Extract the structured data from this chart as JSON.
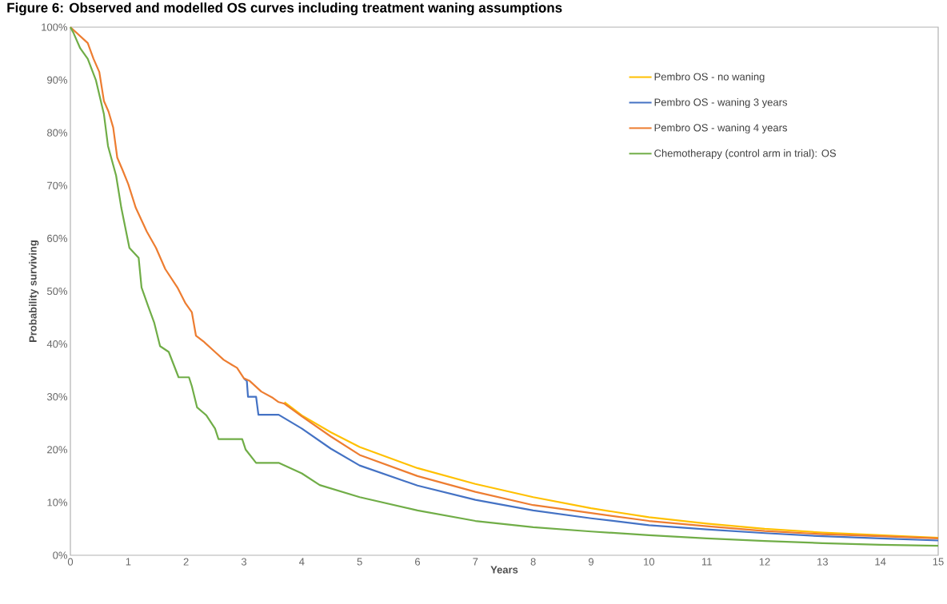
{
  "chart_data": {
    "type": "line",
    "title": "Figure 6: Observed and modelled OS curves including treatment waning assumptions",
    "xlabel": "Years",
    "ylabel": "Probability surviving",
    "xlim": [
      0,
      15
    ],
    "xticks": [
      0,
      1,
      2,
      3,
      4,
      5,
      6,
      7,
      8,
      9,
      10,
      11,
      12,
      13,
      14,
      15
    ],
    "ylim": [
      0,
      100
    ],
    "yticks": [
      {
        "value": 0,
        "label": "0%"
      },
      {
        "value": 10,
        "label": "10%"
      },
      {
        "value": 20,
        "label": "20%"
      },
      {
        "value": 30,
        "label": "30%"
      },
      {
        "value": 40,
        "label": "40%"
      },
      {
        "value": 50,
        "label": "50%"
      },
      {
        "value": 60,
        "label": "60%"
      },
      {
        "value": 70,
        "label": "70%"
      },
      {
        "value": 80,
        "label": "80%"
      },
      {
        "value": 90,
        "label": "90%"
      },
      {
        "value": 100,
        "label": "100%"
      }
    ],
    "grid": false,
    "legend": "top right",
    "line_style": "solid",
    "series": [
      {
        "name": "Pembro OS - no waning",
        "color": "#ffc000",
        "x": [
          3.7,
          4,
          4.5,
          5,
          6,
          7,
          8,
          9,
          10,
          11,
          12,
          13,
          14,
          15
        ],
        "values": [
          29,
          26.5,
          23.3,
          20.5,
          16.5,
          13.5,
          11,
          8.9,
          7.2,
          6,
          5,
          4.3,
          3.8,
          3.3
        ]
      },
      {
        "name": "Pembro OS - waning 3 years",
        "color": "#4472c4",
        "x": [
          3.0,
          3.05,
          3.07,
          3.21,
          3.25,
          3.6,
          4,
          4.5,
          5,
          6,
          7,
          8,
          9,
          10,
          11,
          12,
          13,
          14,
          15
        ],
        "values": [
          33.5,
          33,
          30,
          30,
          26.6,
          26.6,
          24,
          20.2,
          17,
          13.2,
          10.5,
          8.5,
          7,
          5.7,
          4.9,
          4.2,
          3.6,
          3.2,
          2.8
        ]
      },
      {
        "name": "Pembro OS - waning 4 years",
        "color": "#ed7d31",
        "x": [
          0,
          0.1,
          0.2,
          0.3,
          0.4,
          0.5,
          0.58,
          0.66,
          0.74,
          0.81,
          0.9,
          1.0,
          1.13,
          1.32,
          1.48,
          1.64,
          1.85,
          1.99,
          2.1,
          2.17,
          2.3,
          2.5,
          2.65,
          2.8,
          2.88,
          3.0,
          3.1,
          3.3,
          3.5,
          3.6,
          3.7,
          4,
          4.5,
          5,
          6,
          7,
          8,
          9,
          10,
          11,
          12,
          13,
          14,
          15
        ],
        "values": [
          100,
          99,
          98,
          97,
          94,
          91.5,
          86,
          84,
          81,
          75.3,
          73,
          70.3,
          65.8,
          61.3,
          58.2,
          54.2,
          50.7,
          47.7,
          46,
          41.6,
          40.5,
          38.5,
          37,
          36,
          35.5,
          33.5,
          33,
          31,
          29.8,
          29,
          28.7,
          26.3,
          22.5,
          19,
          15,
          12,
          9.5,
          8,
          6.5,
          5.5,
          4.6,
          4,
          3.6,
          3.2
        ]
      },
      {
        "name": "Chemotherapy (control arm in trial): OS",
        "color": "#70ad47",
        "x": [
          0,
          0.05,
          0.17,
          0.3,
          0.44,
          0.58,
          0.65,
          0.79,
          0.88,
          1.02,
          1.18,
          1.23,
          1.35,
          1.45,
          1.55,
          1.7,
          1.87,
          2.05,
          2.1,
          2.19,
          2.35,
          2.5,
          2.56,
          2.97,
          3.03,
          3.21,
          3.6,
          4,
          4.31,
          5,
          6,
          7,
          8,
          9,
          10,
          11,
          12,
          13,
          14,
          15
        ],
        "values": [
          100,
          99,
          96,
          94,
          90,
          83.5,
          77.5,
          71.9,
          65.8,
          58.2,
          56.3,
          50.7,
          47,
          44,
          39.6,
          38.5,
          33.7,
          33.7,
          32,
          28,
          26.5,
          24,
          22,
          22,
          20,
          17.5,
          17.5,
          15.5,
          13.3,
          11,
          8.5,
          6.5,
          5.3,
          4.5,
          3.8,
          3.2,
          2.7,
          2.3,
          2,
          1.8
        ]
      }
    ]
  }
}
